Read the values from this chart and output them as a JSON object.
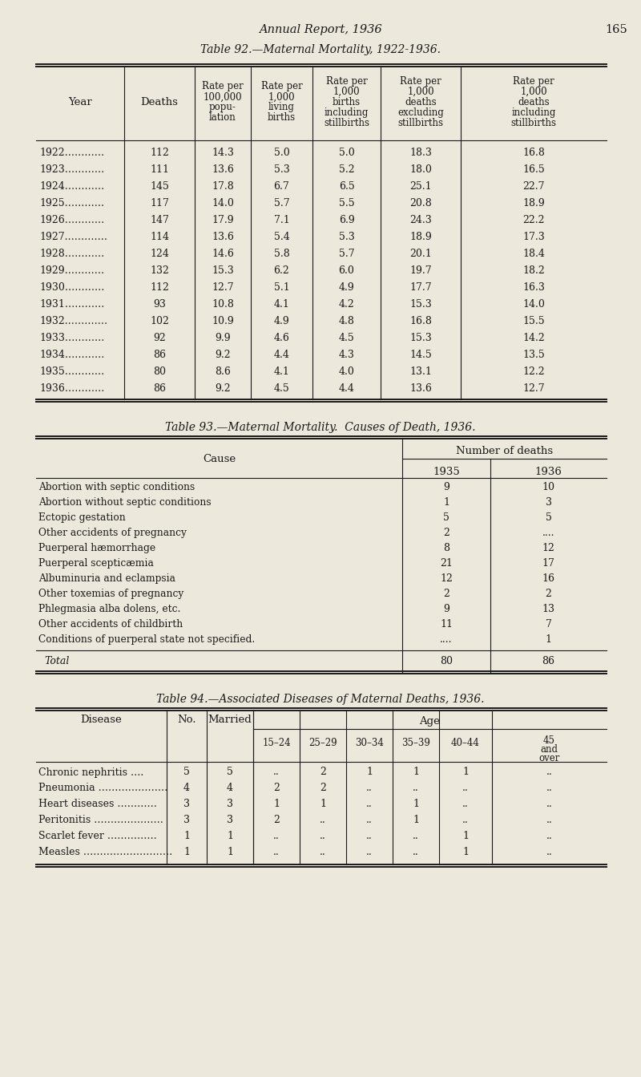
{
  "page_header": "Annual Report, 1936",
  "page_number": "165",
  "bg_color": "#ede8dc",
  "text_color": "#1a1a1a",
  "table92_title": "Table 92.—Maternal Mortality, 1922-1936.",
  "table92_rows": [
    [
      "1922…………",
      "112",
      "14.3",
      "5.0",
      "5.0",
      "18.3",
      "16.8"
    ],
    [
      "1923…………",
      "111",
      "13.6",
      "5.3",
      "5.2",
      "18.0",
      "16.5"
    ],
    [
      "1924…………",
      "145",
      "17.8",
      "6.7",
      "6.5",
      "25.1",
      "22.7"
    ],
    [
      "1925…………",
      "117",
      "14.0",
      "5.7",
      "5.5",
      "20.8",
      "18.9"
    ],
    [
      "1926…………",
      "147",
      "17.9",
      "7.1",
      "6.9",
      "24.3",
      "22.2"
    ],
    [
      "1927.…………",
      "114",
      "13.6",
      "5.4",
      "5.3",
      "18.9",
      "17.3"
    ],
    [
      "1928…………",
      "124",
      "14.6",
      "5.8",
      "5.7",
      "20.1",
      "18.4"
    ],
    [
      "1929…………",
      "132",
      "15.3",
      "6.2",
      "6.0",
      "19.7",
      "18.2"
    ],
    [
      "1930…………",
      "112",
      "12.7",
      "5.1",
      "4.9",
      "17.7",
      "16.3"
    ],
    [
      "1931…………",
      "93",
      "10.8",
      "4.1",
      "4.2",
      "15.3",
      "14.0"
    ],
    [
      "1932.…………",
      "102",
      "10.9",
      "4.9",
      "4.8",
      "16.8",
      "15.5"
    ],
    [
      "1933…………",
      "92",
      "9.9",
      "4.6",
      "4.5",
      "15.3",
      "14.2"
    ],
    [
      "1934…………",
      "86",
      "9.2",
      "4.4",
      "4.3",
      "14.5",
      "13.5"
    ],
    [
      "1935…………",
      "80",
      "8.6",
      "4.1",
      "4.0",
      "13.1",
      "12.2"
    ],
    [
      "1936…………",
      "86",
      "9.2",
      "4.5",
      "4.4",
      "13.6",
      "12.7"
    ]
  ],
  "table93_title": "Table 93.—Maternal Mortality.  Causes of Death, 1936.",
  "table93_group_header": "Number of deaths",
  "table93_rows": [
    [
      "Abortion with septic conditions",
      "9",
      "10"
    ],
    [
      "Abortion without septic conditions",
      "1",
      "3"
    ],
    [
      "Ectopic gestation",
      "5",
      "5"
    ],
    [
      "Other accidents of pregnancy",
      "2",
      "...."
    ],
    [
      "Puerperal hæmorrhage",
      "8",
      "12"
    ],
    [
      "Puerperal scepticæmia",
      "21",
      "17"
    ],
    [
      "Albuminuria and eclampsia",
      "12",
      "16"
    ],
    [
      "Other toxemias of pregnancy",
      "2",
      "2"
    ],
    [
      "Phlegmasia alba dolens, etc.",
      "9",
      "13"
    ],
    [
      "Other accidents of childbirth",
      "11",
      "7"
    ],
    [
      "Conditions of puerperal state not specified.",
      "....",
      "1"
    ]
  ],
  "table93_total_1935": "80",
  "table93_total_1936": "86",
  "table94_title": "Table 94.—Associated Diseases of Maternal Deaths, 1936.",
  "table94_age_header": "Age",
  "table94_rows": [
    [
      "Chronic nephritis ….",
      "5",
      "5",
      "..",
      "2",
      "1",
      "1",
      "1",
      ".."
    ],
    [
      "Pneumonia …………………",
      "4",
      "4",
      "2",
      "2",
      "..",
      "..",
      "..",
      ".."
    ],
    [
      "Heart diseases …………",
      "3",
      "3",
      "1",
      "1",
      "..",
      "1",
      "..",
      ".."
    ],
    [
      "Peritonitis …………………",
      "3",
      "3",
      "2",
      "..",
      "..",
      "1",
      "..",
      ".."
    ],
    [
      "Scarlet fever ……………",
      "1",
      "1",
      "..",
      "..",
      "..",
      "..",
      "1",
      ".."
    ],
    [
      "Measles ………………………",
      "1",
      "1",
      "..",
      "..",
      "..",
      "..",
      "1",
      ".."
    ]
  ]
}
